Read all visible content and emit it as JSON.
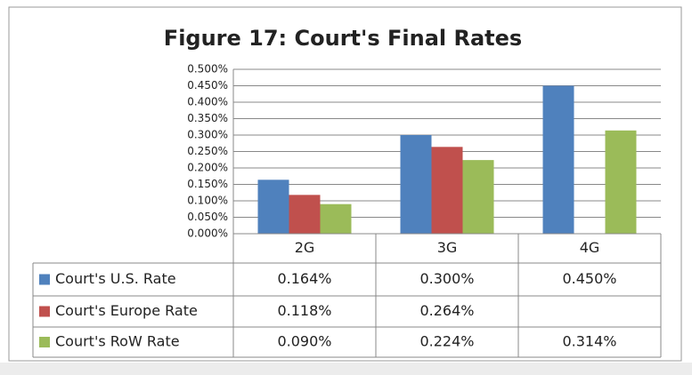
{
  "chart_data": {
    "type": "bar",
    "title": "Figure 17: Court's Final Rates",
    "categories": [
      "2G",
      "3G",
      "4G"
    ],
    "series": [
      {
        "name": "Court's U.S. Rate",
        "color": "#4f81bd",
        "values": [
          0.164,
          0.3,
          0.45
        ],
        "value_labels": [
          "0.164%",
          "0.300%",
          "0.450%"
        ]
      },
      {
        "name": "Court's Europe Rate",
        "color": "#c0504d",
        "values": [
          0.118,
          0.264,
          null
        ],
        "value_labels": [
          "0.118%",
          "0.264%",
          null
        ]
      },
      {
        "name": "Court's RoW Rate",
        "color": "#9bbb59",
        "values": [
          0.09,
          0.224,
          0.314
        ],
        "value_labels": [
          "0.090%",
          "0.224%",
          "0.314%"
        ]
      }
    ],
    "ylim": [
      0,
      0.5
    ],
    "yticks": [
      {
        "value": 0,
        "label": "0.000%"
      },
      {
        "value": 0.05,
        "label": "0.050%"
      },
      {
        "value": 0.1,
        "label": "0.100%"
      },
      {
        "value": 0.15,
        "label": "0.150%"
      },
      {
        "value": 0.2,
        "label": "0.200%"
      },
      {
        "value": 0.25,
        "label": "0.250%"
      },
      {
        "value": 0.3,
        "label": "0.300%"
      },
      {
        "value": 0.35,
        "label": "0.350%"
      },
      {
        "value": 0.4,
        "label": "0.400%"
      },
      {
        "value": 0.45,
        "label": "0.450%"
      },
      {
        "value": 0.5,
        "label": "0.500%"
      }
    ],
    "grid": true
  }
}
